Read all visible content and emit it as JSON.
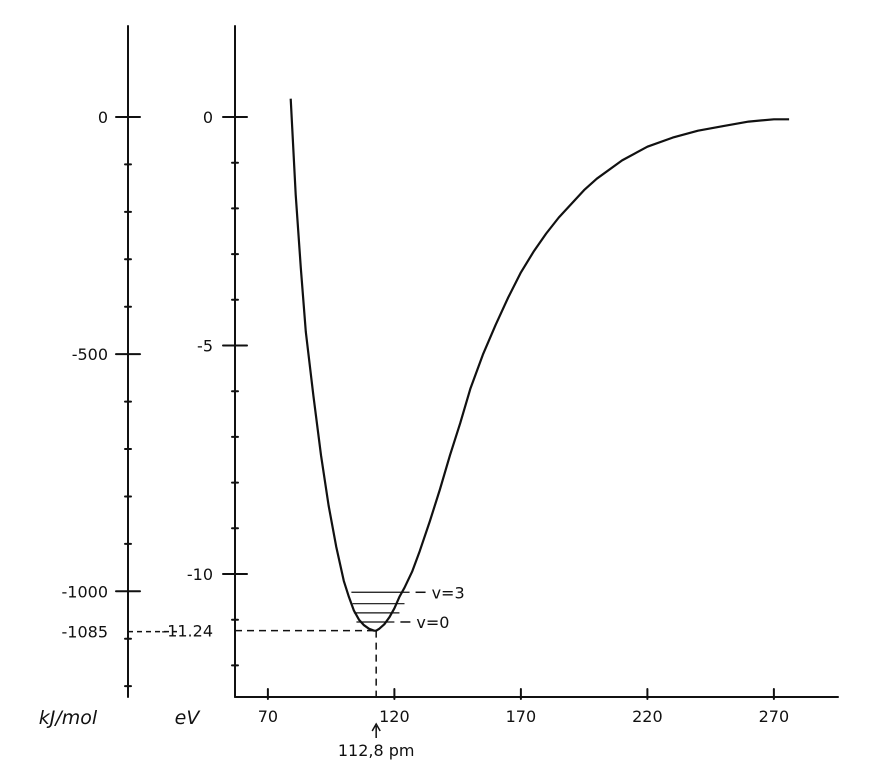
{
  "chart_data": {
    "type": "line",
    "title": "",
    "xlabel": "",
    "xlim": [
      57,
      290
    ],
    "x_ticks": [
      70,
      120,
      170,
      220,
      270
    ],
    "x_tick_labels": [
      "70",
      "120",
      "170",
      "220",
      "270"
    ],
    "ylim": [
      -12.5,
      2.0
    ],
    "ev_axis": {
      "unit": "eV",
      "ticks": [
        0,
        -5,
        -10,
        -11.24
      ],
      "tick_labels": [
        "0",
        "-5",
        "-10",
        "-11.24"
      ]
    },
    "kj_axis": {
      "unit": "kJ/mol",
      "ticks": [
        0,
        -500,
        -1000,
        -1085
      ],
      "tick_labels": [
        "0",
        "-500",
        "-1000",
        "-1085"
      ]
    },
    "equilibrium": {
      "x": 112.8,
      "y": -11.24,
      "label": "112,8 pm"
    },
    "series": [
      {
        "x": [
          79,
          81,
          83,
          85,
          88,
          91,
          94,
          97,
          100,
          102,
          104,
          106,
          108,
          110,
          112,
          112.8,
          114,
          116,
          118,
          120,
          122,
          124,
          127,
          130,
          134,
          138,
          142,
          146,
          150,
          155,
          160,
          165,
          170,
          175,
          180,
          185,
          190,
          195,
          200,
          210,
          220,
          230,
          240,
          250,
          260,
          270,
          276
        ],
        "y": [
          0.4,
          -1.7,
          -3.3,
          -4.7,
          -6.1,
          -7.4,
          -8.5,
          -9.4,
          -10.15,
          -10.5,
          -10.8,
          -11.0,
          -11.12,
          -11.2,
          -11.24,
          -11.24,
          -11.2,
          -11.1,
          -10.95,
          -10.75,
          -10.5,
          -10.3,
          -9.95,
          -9.5,
          -8.85,
          -8.15,
          -7.4,
          -6.7,
          -5.95,
          -5.2,
          -4.55,
          -3.95,
          -3.4,
          -2.95,
          -2.55,
          -2.2,
          -1.9,
          -1.6,
          -1.35,
          -0.95,
          -0.65,
          -0.45,
          -0.3,
          -0.2,
          -0.1,
          -0.05,
          -0.05
        ]
      }
    ],
    "vibrational_levels": [
      {
        "y": -11.05,
        "x_left": 105,
        "x_right": 120,
        "label": "v=0"
      },
      {
        "y": -10.85,
        "x_left": 104,
        "x_right": 122,
        "label": ""
      },
      {
        "y": -10.65,
        "x_left": 103.5,
        "x_right": 124,
        "label": ""
      },
      {
        "y": -10.4,
        "x_left": 103,
        "x_right": 126,
        "label": "v=3"
      }
    ]
  }
}
